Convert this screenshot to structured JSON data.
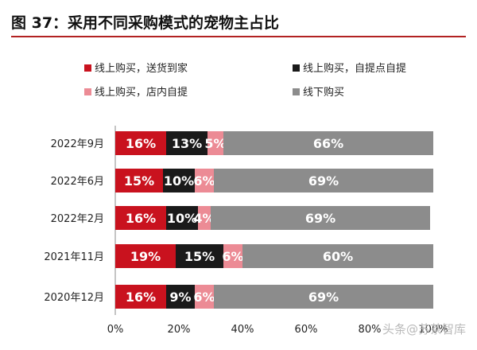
{
  "title": "图 37：采用不同采购模式的宠物主占比",
  "watermark": "头条@苏茶智库",
  "colors": {
    "online_delivery": "#c9121e",
    "online_pickup": "#1a1a1a",
    "online_instore": "#ec8b95",
    "offline": "#8c8c8c",
    "accent_rule": "#b22222"
  },
  "chart_data": {
    "type": "bar",
    "orientation": "horizontal",
    "stacked": true,
    "categories": [
      "2022年9月",
      "2022年6月",
      "2022年2月",
      "2021年11月",
      "2020年12月"
    ],
    "series": [
      {
        "name": "线上购买，送货到家",
        "values": [
          16,
          15,
          16,
          19,
          16
        ],
        "color": "#c9121e"
      },
      {
        "name": "线上购买，自提点自提",
        "values": [
          13,
          10,
          10,
          15,
          9
        ],
        "color": "#1a1a1a"
      },
      {
        "name": "线上购买，店内自提",
        "values": [
          5,
          6,
          4,
          6,
          6
        ],
        "color": "#ec8b95"
      },
      {
        "name": "线下购买",
        "values": [
          66,
          69,
          69,
          60,
          69
        ],
        "color": "#8c8c8c"
      }
    ],
    "value_suffix": "%",
    "xlim": [
      0,
      100
    ],
    "xticks": [
      "0%",
      "20%",
      "40%",
      "60%",
      "80%",
      "100%"
    ],
    "legend_position": "top",
    "grid": false
  }
}
